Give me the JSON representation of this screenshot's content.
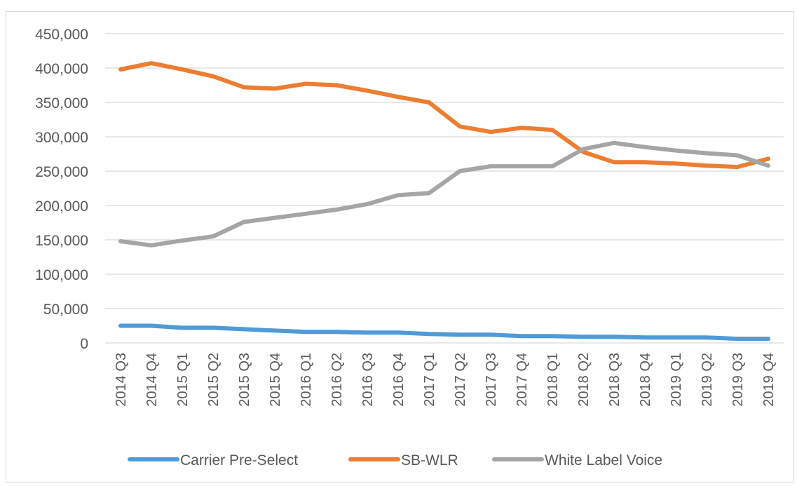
{
  "chart_data": {
    "type": "line",
    "title": "",
    "xlabel": "",
    "ylabel": "",
    "ylim": [
      0,
      450000
    ],
    "yticks": [
      0,
      50000,
      100000,
      150000,
      200000,
      250000,
      300000,
      350000,
      400000,
      450000
    ],
    "ytick_labels": [
      "0",
      "50,000",
      "100,000",
      "150,000",
      "200,000",
      "250,000",
      "300,000",
      "350,000",
      "400,000",
      "450,000"
    ],
    "grid": true,
    "legend_position": "bottom",
    "categories": [
      "2014 Q3",
      "2014 Q4",
      "2015 Q1",
      "2015 Q2",
      "2015 Q3",
      "2015 Q4",
      "2016 Q1",
      "2016 Q2",
      "2016 Q3",
      "2016 Q4",
      "2017 Q1",
      "2017 Q2",
      "2017 Q3",
      "2017 Q4",
      "2018 Q1",
      "2018 Q2",
      "2018 Q3",
      "2018 Q4",
      "2019 Q1",
      "2019 Q2",
      "2019 Q3",
      "2019 Q4"
    ],
    "series": [
      {
        "name": "Carrier Pre-Select",
        "color": "#4f9ad8",
        "values": [
          25000,
          25000,
          22000,
          22000,
          20000,
          18000,
          16000,
          16000,
          15000,
          15000,
          13000,
          12000,
          12000,
          10000,
          10000,
          9000,
          9000,
          8000,
          8000,
          8000,
          6000,
          6000
        ]
      },
      {
        "name": "SB-WLR",
        "color": "#ed7d31",
        "values": [
          398000,
          407000,
          398000,
          388000,
          372000,
          370000,
          377000,
          375000,
          367000,
          358000,
          350000,
          315000,
          307000,
          313000,
          310000,
          278000,
          263000,
          263000,
          261000,
          258000,
          256000,
          268000
        ]
      },
      {
        "name": "White Label Voice",
        "color": "#a5a5a5",
        "values": [
          148000,
          142000,
          149000,
          155000,
          176000,
          182000,
          188000,
          194000,
          202000,
          215000,
          218000,
          250000,
          257000,
          257000,
          257000,
          282000,
          291000,
          285000,
          280000,
          276000,
          273000,
          258000
        ]
      }
    ]
  }
}
